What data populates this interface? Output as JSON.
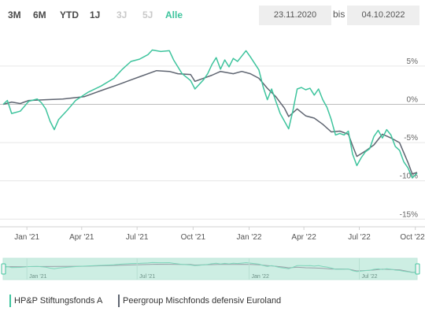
{
  "range_buttons": [
    {
      "label": "3M",
      "state": "normal"
    },
    {
      "label": "6M",
      "state": "normal"
    },
    {
      "label": "YTD",
      "state": "normal"
    },
    {
      "label": "1J",
      "state": "normal"
    },
    {
      "label": "3J",
      "state": "disabled"
    },
    {
      "label": "5J",
      "state": "disabled"
    },
    {
      "label": "Alle",
      "state": "active"
    }
  ],
  "date_range": {
    "from": "23.11.2020",
    "separator": "bis",
    "to": "04.10.2022"
  },
  "colors": {
    "fund": "#3ec49d",
    "peer": "#5f6571",
    "navigator_fill": "#cdeee3",
    "accent": "#3ec49d"
  },
  "chart_data": {
    "type": "line",
    "x_start": "2020-11-23",
    "x_end": "2022-10-04",
    "xticks": [
      {
        "date": "2021-01-01",
        "label": "Jan '21"
      },
      {
        "date": "2021-04-01",
        "label": "Apr '21"
      },
      {
        "date": "2021-07-01",
        "label": "Jul '21"
      },
      {
        "date": "2021-10-01",
        "label": "Oct '21"
      },
      {
        "date": "2022-01-01",
        "label": "Jan '22"
      },
      {
        "date": "2022-04-01",
        "label": "Apr '22"
      },
      {
        "date": "2022-07-01",
        "label": "Jul '22"
      },
      {
        "date": "2022-10-01",
        "label": "Oct '22"
      }
    ],
    "yticks": [
      {
        "value": 5,
        "label": "5%"
      },
      {
        "value": 0,
        "label": "0%"
      },
      {
        "value": -5,
        "label": "-5%"
      },
      {
        "value": -10,
        "label": "-10%"
      },
      {
        "value": -15,
        "label": "-15%"
      }
    ],
    "ylim": [
      -16,
      9
    ],
    "series": [
      {
        "name": "HP&P Stiftungsfonds A",
        "color": "#3ec49d",
        "points": [
          [
            "2020-11-23",
            0.0
          ],
          [
            "2020-11-30",
            0.5
          ],
          [
            "2020-12-07",
            -1.2
          ],
          [
            "2020-12-21",
            -0.9
          ],
          [
            "2021-01-04",
            0.4
          ],
          [
            "2021-01-18",
            0.7
          ],
          [
            "2021-01-25",
            0.2
          ],
          [
            "2021-02-01",
            -0.6
          ],
          [
            "2021-02-08",
            -2.2
          ],
          [
            "2021-02-15",
            -3.3
          ],
          [
            "2021-02-22",
            -2.0
          ],
          [
            "2021-03-08",
            -0.8
          ],
          [
            "2021-03-22",
            0.5
          ],
          [
            "2021-04-12",
            1.6
          ],
          [
            "2021-05-03",
            2.4
          ],
          [
            "2021-05-24",
            3.4
          ],
          [
            "2021-06-07",
            4.6
          ],
          [
            "2021-06-21",
            5.6
          ],
          [
            "2021-07-05",
            5.9
          ],
          [
            "2021-07-19",
            6.5
          ],
          [
            "2021-07-26",
            7.1
          ],
          [
            "2021-08-09",
            6.9
          ],
          [
            "2021-08-23",
            7.0
          ],
          [
            "2021-08-30",
            5.8
          ],
          [
            "2021-09-13",
            4.0
          ],
          [
            "2021-09-27",
            3.1
          ],
          [
            "2021-10-04",
            2.0
          ],
          [
            "2021-10-18",
            3.2
          ],
          [
            "2021-10-25",
            4.0
          ],
          [
            "2021-11-01",
            5.2
          ],
          [
            "2021-11-08",
            6.1
          ],
          [
            "2021-11-15",
            4.6
          ],
          [
            "2021-11-22",
            5.8
          ],
          [
            "2021-11-29",
            4.9
          ],
          [
            "2021-12-06",
            6.0
          ],
          [
            "2021-12-13",
            5.6
          ],
          [
            "2021-12-20",
            6.3
          ],
          [
            "2021-12-27",
            7.0
          ],
          [
            "2022-01-03",
            6.2
          ],
          [
            "2022-01-17",
            4.5
          ],
          [
            "2022-01-24",
            2.3
          ],
          [
            "2022-01-31",
            0.6
          ],
          [
            "2022-02-07",
            2.0
          ],
          [
            "2022-02-14",
            0.4
          ],
          [
            "2022-02-21",
            -1.2
          ],
          [
            "2022-03-07",
            -3.2
          ],
          [
            "2022-03-14",
            -0.8
          ],
          [
            "2022-03-21",
            2.0
          ],
          [
            "2022-03-28",
            2.2
          ],
          [
            "2022-04-04",
            1.9
          ],
          [
            "2022-04-11",
            2.1
          ],
          [
            "2022-04-18",
            1.2
          ],
          [
            "2022-04-25",
            2.0
          ],
          [
            "2022-05-02",
            0.6
          ],
          [
            "2022-05-09",
            -0.4
          ],
          [
            "2022-05-16",
            -2.0
          ],
          [
            "2022-05-23",
            -4.0
          ],
          [
            "2022-05-30",
            -3.8
          ],
          [
            "2022-06-06",
            -4.0
          ],
          [
            "2022-06-13",
            -3.5
          ],
          [
            "2022-06-20",
            -6.5
          ],
          [
            "2022-06-27",
            -8.0
          ],
          [
            "2022-07-04",
            -7.0
          ],
          [
            "2022-07-11",
            -6.2
          ],
          [
            "2022-07-18",
            -5.8
          ],
          [
            "2022-07-25",
            -4.2
          ],
          [
            "2022-08-01",
            -3.4
          ],
          [
            "2022-08-08",
            -4.4
          ],
          [
            "2022-08-15",
            -3.3
          ],
          [
            "2022-08-22",
            -4.0
          ],
          [
            "2022-08-29",
            -5.5
          ],
          [
            "2022-09-05",
            -6.0
          ],
          [
            "2022-09-12",
            -7.5
          ],
          [
            "2022-09-19",
            -8.3
          ],
          [
            "2022-09-26",
            -9.6
          ],
          [
            "2022-10-04",
            -9.0
          ]
        ]
      },
      {
        "name": "Peergroup Mischfonds defensiv Euroland",
        "color": "#5f6571",
        "points": [
          [
            "2020-11-23",
            0.0
          ],
          [
            "2020-12-07",
            0.3
          ],
          [
            "2020-12-21",
            0.1
          ],
          [
            "2021-01-04",
            0.5
          ],
          [
            "2021-02-01",
            0.6
          ],
          [
            "2021-03-01",
            0.7
          ],
          [
            "2021-04-05",
            1.0
          ],
          [
            "2021-05-03",
            1.8
          ],
          [
            "2021-06-01",
            2.6
          ],
          [
            "2021-06-21",
            3.2
          ],
          [
            "2021-07-05",
            3.6
          ],
          [
            "2021-08-02",
            4.4
          ],
          [
            "2021-08-23",
            4.3
          ],
          [
            "2021-09-06",
            4.0
          ],
          [
            "2021-09-27",
            3.9
          ],
          [
            "2021-10-04",
            3.0
          ],
          [
            "2021-10-18",
            3.4
          ],
          [
            "2021-11-01",
            3.8
          ],
          [
            "2021-11-15",
            4.3
          ],
          [
            "2021-12-06",
            4.0
          ],
          [
            "2021-12-20",
            4.3
          ],
          [
            "2022-01-03",
            4.0
          ],
          [
            "2022-01-17",
            3.4
          ],
          [
            "2022-01-31",
            2.1
          ],
          [
            "2022-02-14",
            1.0
          ],
          [
            "2022-02-28",
            -0.5
          ],
          [
            "2022-03-07",
            -1.6
          ],
          [
            "2022-03-21",
            -0.6
          ],
          [
            "2022-04-04",
            -1.5
          ],
          [
            "2022-04-18",
            -1.8
          ],
          [
            "2022-05-02",
            -2.6
          ],
          [
            "2022-05-16",
            -3.6
          ],
          [
            "2022-05-30",
            -3.5
          ],
          [
            "2022-06-13",
            -3.9
          ],
          [
            "2022-06-20",
            -5.4
          ],
          [
            "2022-06-27",
            -6.8
          ],
          [
            "2022-07-11",
            -6.1
          ],
          [
            "2022-07-25",
            -5.3
          ],
          [
            "2022-08-08",
            -3.9
          ],
          [
            "2022-08-22",
            -4.4
          ],
          [
            "2022-09-05",
            -5.0
          ],
          [
            "2022-09-19",
            -7.6
          ],
          [
            "2022-09-26",
            -9.1
          ],
          [
            "2022-10-04",
            -8.9
          ]
        ]
      }
    ],
    "navigator_ticks": [
      {
        "date": "2021-01-01",
        "label": "Jan '21"
      },
      {
        "date": "2021-07-01",
        "label": "Jul '21"
      },
      {
        "date": "2022-01-01",
        "label": "Jan '22"
      },
      {
        "date": "2022-07-01",
        "label": "Jul '22"
      }
    ],
    "grid": true,
    "legend_position": "bottom-left"
  }
}
